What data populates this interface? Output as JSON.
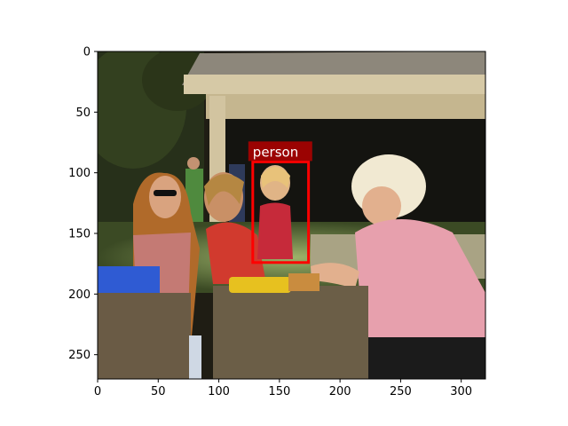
{
  "image": {
    "width": 320,
    "height": 270,
    "description_colors": {
      "sky_bg": "#2a2a1e",
      "roof": "#8a857a",
      "awning": "#cdbf9c",
      "grass": "#5e7a32",
      "table": "#5a4a38"
    }
  },
  "axes": {
    "x_ticks": [
      "0",
      "50",
      "100",
      "150",
      "200",
      "250",
      "300"
    ],
    "y_ticks": [
      "0",
      "50",
      "100",
      "150",
      "200",
      "250"
    ],
    "x_tick_values": [
      0,
      50,
      100,
      150,
      200,
      250,
      300
    ],
    "y_tick_values": [
      0,
      50,
      100,
      150,
      200,
      250
    ]
  },
  "detections": [
    {
      "label": "person",
      "bbox_data": [
        128,
        91,
        174,
        174
      ],
      "color": "#ff0000"
    }
  ]
}
